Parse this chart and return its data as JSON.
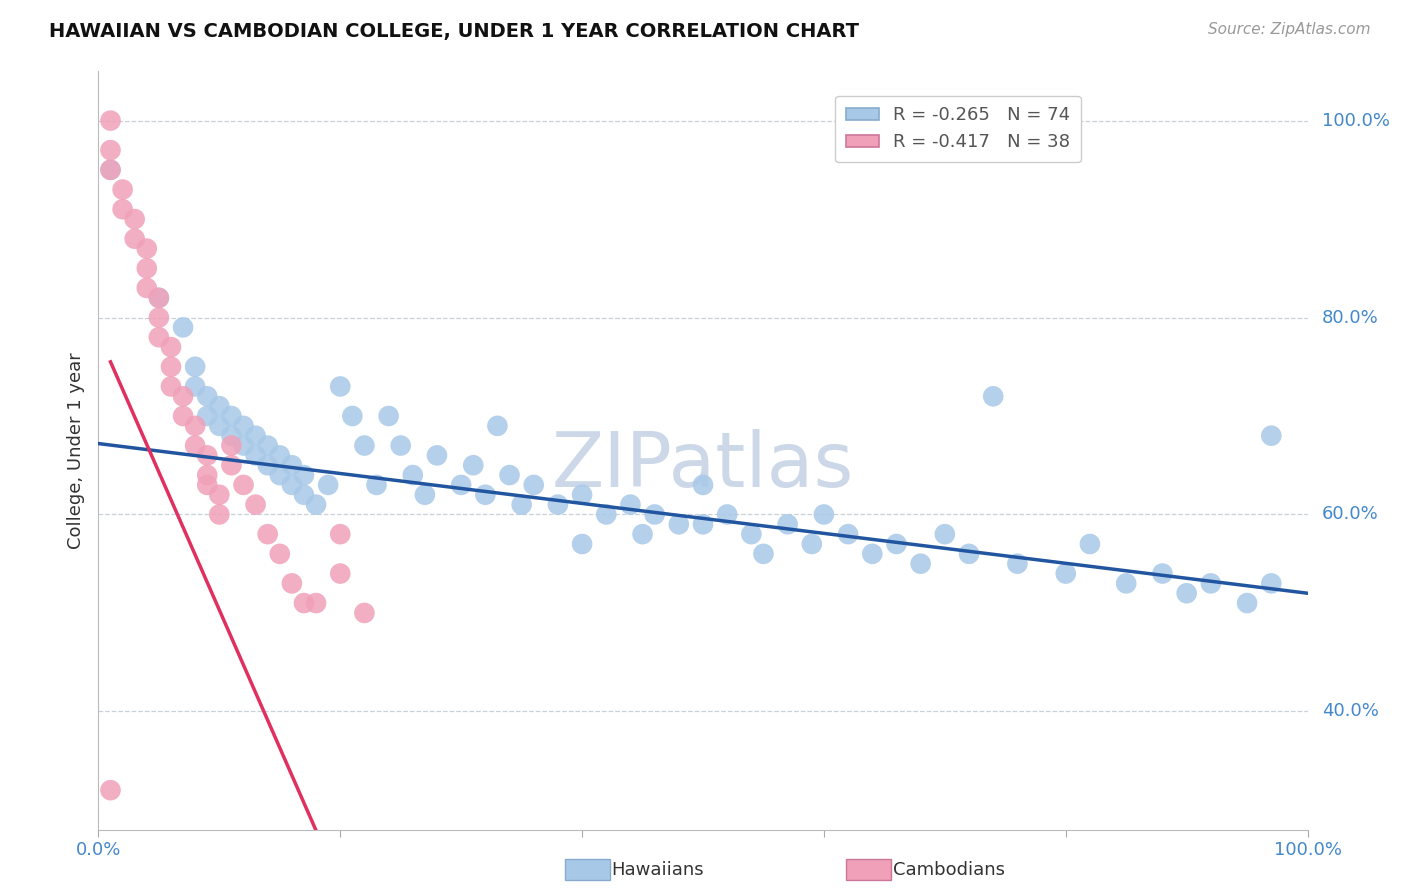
{
  "title": "HAWAIIAN VS CAMBODIAN COLLEGE, UNDER 1 YEAR CORRELATION CHART",
  "source_text": "Source: ZipAtlas.com",
  "ylabel": "College, Under 1 year",
  "xlim": [
    0.0,
    1.0
  ],
  "ylim": [
    0.28,
    1.05
  ],
  "y_tick_labels": [
    "40.0%",
    "60.0%",
    "80.0%",
    "100.0%"
  ],
  "y_tick_positions": [
    0.4,
    0.6,
    0.8,
    1.0
  ],
  "hawaiian_R": -0.265,
  "hawaiian_N": 74,
  "cambodian_R": -0.417,
  "cambodian_N": 38,
  "hawaiian_color": "#a8c8e8",
  "cambodian_color": "#f0a0b8",
  "hawaiian_line_color": "#2255a0",
  "cambodian_line_color": "#e03060",
  "hawaiian_scatter_x": [
    0.01,
    0.05,
    0.07,
    0.08,
    0.08,
    0.09,
    0.09,
    0.1,
    0.1,
    0.11,
    0.11,
    0.12,
    0.12,
    0.13,
    0.13,
    0.14,
    0.14,
    0.15,
    0.15,
    0.16,
    0.16,
    0.17,
    0.17,
    0.18,
    0.19,
    0.2,
    0.21,
    0.22,
    0.23,
    0.24,
    0.25,
    0.26,
    0.27,
    0.28,
    0.3,
    0.31,
    0.32,
    0.34,
    0.35,
    0.36,
    0.38,
    0.4,
    0.42,
    0.44,
    0.45,
    0.46,
    0.48,
    0.5,
    0.52,
    0.54,
    0.55,
    0.57,
    0.59,
    0.6,
    0.62,
    0.64,
    0.66,
    0.68,
    0.7,
    0.72,
    0.74,
    0.76,
    0.8,
    0.82,
    0.85,
    0.88,
    0.9,
    0.92,
    0.95,
    0.97,
    0.33,
    0.4,
    0.5,
    0.97
  ],
  "hawaiian_scatter_y": [
    0.95,
    0.82,
    0.79,
    0.75,
    0.73,
    0.72,
    0.7,
    0.69,
    0.71,
    0.68,
    0.7,
    0.67,
    0.69,
    0.66,
    0.68,
    0.65,
    0.67,
    0.64,
    0.66,
    0.63,
    0.65,
    0.62,
    0.64,
    0.61,
    0.63,
    0.73,
    0.7,
    0.67,
    0.63,
    0.7,
    0.67,
    0.64,
    0.62,
    0.66,
    0.63,
    0.65,
    0.62,
    0.64,
    0.61,
    0.63,
    0.61,
    0.62,
    0.6,
    0.61,
    0.58,
    0.6,
    0.59,
    0.63,
    0.6,
    0.58,
    0.56,
    0.59,
    0.57,
    0.6,
    0.58,
    0.56,
    0.57,
    0.55,
    0.58,
    0.56,
    0.72,
    0.55,
    0.54,
    0.57,
    0.53,
    0.54,
    0.52,
    0.53,
    0.51,
    0.53,
    0.69,
    0.57,
    0.59,
    0.68
  ],
  "cambodian_scatter_x": [
    0.01,
    0.01,
    0.01,
    0.02,
    0.02,
    0.03,
    0.03,
    0.04,
    0.04,
    0.04,
    0.05,
    0.05,
    0.05,
    0.06,
    0.06,
    0.06,
    0.07,
    0.07,
    0.08,
    0.08,
    0.09,
    0.09,
    0.09,
    0.1,
    0.1,
    0.11,
    0.11,
    0.12,
    0.13,
    0.14,
    0.15,
    0.16,
    0.17,
    0.18,
    0.2,
    0.2,
    0.22,
    0.01
  ],
  "cambodian_scatter_y": [
    1.0,
    0.97,
    0.95,
    0.93,
    0.91,
    0.9,
    0.88,
    0.87,
    0.85,
    0.83,
    0.82,
    0.8,
    0.78,
    0.77,
    0.75,
    0.73,
    0.72,
    0.7,
    0.69,
    0.67,
    0.66,
    0.64,
    0.63,
    0.62,
    0.6,
    0.67,
    0.65,
    0.63,
    0.61,
    0.58,
    0.56,
    0.53,
    0.51,
    0.51,
    0.58,
    0.54,
    0.5,
    0.32
  ],
  "watermark": "ZIPatlas",
  "watermark_color": "#ccd8e8",
  "grid_color": "#c8d0d8",
  "background_color": "#ffffff",
  "legend_color_hawaiian": "#a8c8e8",
  "legend_color_cambodian": "#f0a0b8"
}
